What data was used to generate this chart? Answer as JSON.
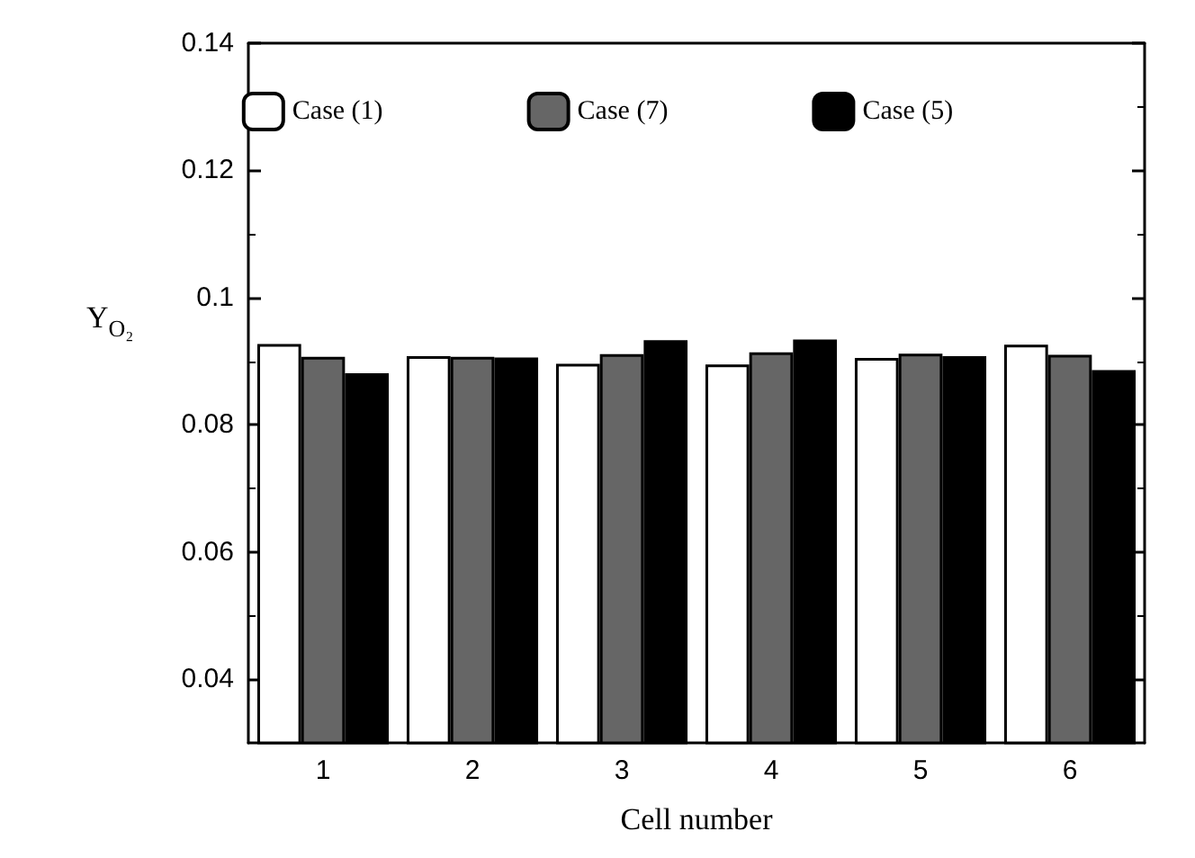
{
  "chart_data": {
    "type": "bar",
    "xlabel": "Cell number",
    "ylabel": "Y$_{O₂}$",
    "categories": [
      "1",
      "2",
      "3",
      "4",
      "5",
      "6"
    ],
    "series": [
      {
        "name": "Case (1)",
        "color": "#ffffff",
        "values": [
          0.0927,
          0.0908,
          0.0896,
          0.0895,
          0.0905,
          0.0926
        ]
      },
      {
        "name": "Case (7)",
        "color": "#666666",
        "values": [
          0.0907,
          0.0907,
          0.0911,
          0.0914,
          0.0912,
          0.091
        ]
      },
      {
        "name": "Case (5)",
        "color": "#000000",
        "values": [
          0.0881,
          0.0906,
          0.0933,
          0.0934,
          0.0908,
          0.0886
        ]
      }
    ],
    "ylim": [
      0.03,
      0.14
    ],
    "yticks": [
      0.04,
      0.06,
      0.08,
      0.1,
      0.12,
      0.14
    ],
    "grid": false,
    "legend": "top"
  }
}
